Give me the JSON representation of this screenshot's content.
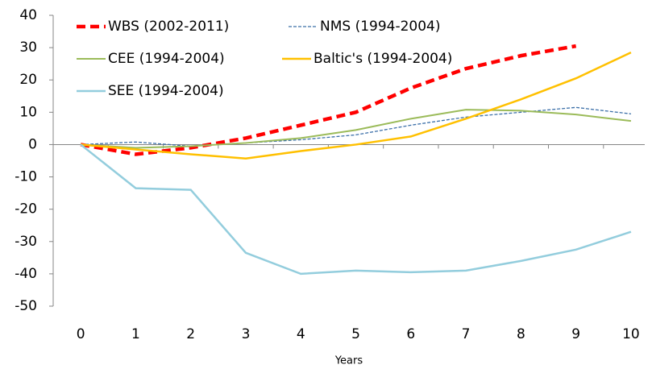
{
  "chart_data": {
    "type": "line",
    "x_label": "Years",
    "x": [
      0,
      1,
      2,
      3,
      4,
      5,
      6,
      7,
      8,
      9,
      10
    ],
    "xticks": [
      0,
      1,
      2,
      3,
      4,
      5,
      6,
      7,
      8,
      9,
      10
    ],
    "xlim": [
      -0.5,
      10.25
    ],
    "ylim": [
      -50,
      40
    ],
    "yticks": [
      -50,
      -40,
      -30,
      -20,
      -10,
      0,
      10,
      20,
      30,
      40
    ],
    "grid": false,
    "legend": "upper left",
    "series": [
      {
        "name": "WBS (2002-2011)",
        "color": "#ff0000",
        "dash": "dashed",
        "width": 4.5,
        "values": [
          0,
          -3,
          -1,
          2,
          6,
          10,
          17.5,
          23.5,
          27.5,
          30.5,
          null
        ]
      },
      {
        "name": "NMS (1994-2004)",
        "color": "#3b6fa8",
        "dash": "dotted",
        "width": 1.3,
        "values": [
          0,
          0.8,
          -0.5,
          0.5,
          1.5,
          3,
          6,
          8.5,
          10,
          11.5,
          9.5
        ]
      },
      {
        "name": "CEE (1994-2004)",
        "color": "#9bbb59",
        "dash": "solid",
        "width": 2,
        "values": [
          0,
          -1,
          -0.5,
          0.5,
          2,
          4.5,
          8,
          10.8,
          10.5,
          9.3,
          7.3
        ]
      },
      {
        "name": "Baltic's (1994-2004)",
        "color": "#ffc000",
        "dash": "solid",
        "width": 2.5,
        "values": [
          0,
          -1.5,
          -3,
          -4.3,
          -2,
          0,
          2.5,
          8,
          14,
          20.5,
          28.5
        ]
      },
      {
        "name": "SEE (1994-2004)",
        "color": "#93cddd",
        "dash": "solid",
        "width": 2.5,
        "values": [
          0,
          -13.5,
          -14,
          -33.5,
          -40,
          -39,
          -39.5,
          -39,
          -36,
          -32.5,
          -27
        ]
      }
    ]
  }
}
